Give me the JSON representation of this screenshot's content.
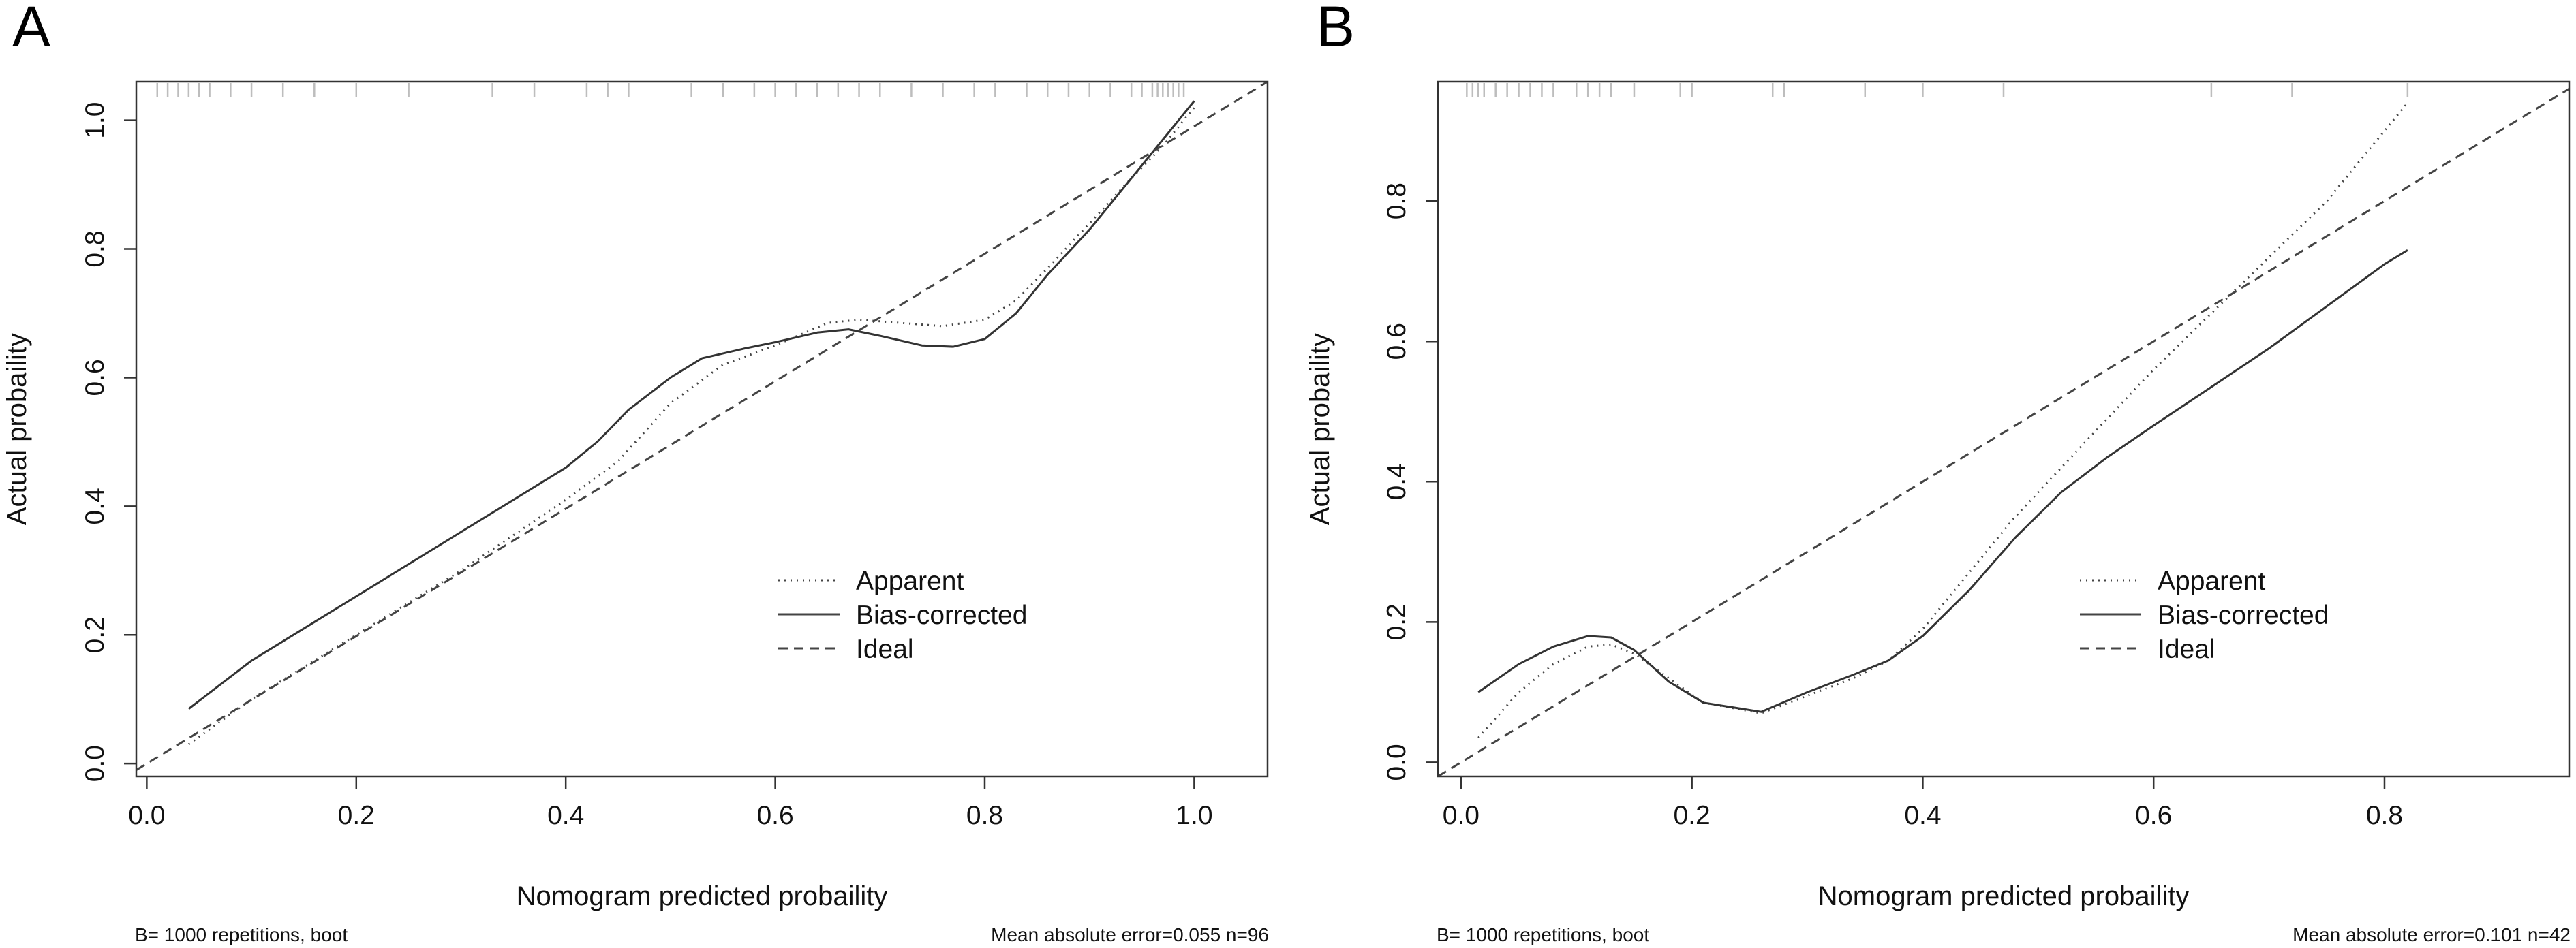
{
  "chart_data": [
    {
      "type": "line",
      "panel_label": "A",
      "xlabel": "Nomogram predicted probaility",
      "ylabel": "Actual probaility",
      "xlim": [
        -0.01,
        1.07
      ],
      "ylim": [
        -0.02,
        1.06
      ],
      "xticks": [
        0.0,
        0.2,
        0.4,
        0.6,
        0.8,
        1.0
      ],
      "xtick_labels": [
        "0.0",
        "0.2",
        "0.4",
        "0.6",
        "0.8",
        "1.0"
      ],
      "yticks": [
        0.0,
        0.2,
        0.4,
        0.6,
        0.8,
        1.0
      ],
      "ytick_labels": [
        "0.0",
        "0.2",
        "0.4",
        "0.6",
        "0.8",
        "1.0"
      ],
      "footer_left": "B= 1000 repetitions, boot",
      "footer_right": "Mean absolute error=0.055 n=96",
      "legend": [
        "Apparent",
        "Bias-corrected",
        "Ideal"
      ],
      "legend_position": "bottom-right",
      "rug": [
        0.01,
        0.02,
        0.03,
        0.04,
        0.05,
        0.06,
        0.08,
        0.1,
        0.13,
        0.16,
        0.2,
        0.25,
        0.33,
        0.37,
        0.42,
        0.44,
        0.46,
        0.52,
        0.55,
        0.58,
        0.6,
        0.62,
        0.64,
        0.66,
        0.68,
        0.7,
        0.73,
        0.76,
        0.79,
        0.81,
        0.84,
        0.86,
        0.88,
        0.9,
        0.92,
        0.94,
        0.95,
        0.96,
        0.965,
        0.97,
        0.975,
        0.98,
        0.985,
        0.99
      ],
      "series": [
        {
          "name": "Apparent",
          "style": "dotted",
          "x": [
            0.04,
            0.1,
            0.2,
            0.3,
            0.4,
            0.45,
            0.5,
            0.55,
            0.6,
            0.65,
            0.68,
            0.72,
            0.76,
            0.8,
            0.83,
            0.86,
            0.9,
            0.94,
            0.97,
            1.0
          ],
          "y": [
            0.03,
            0.1,
            0.2,
            0.3,
            0.41,
            0.47,
            0.56,
            0.62,
            0.65,
            0.685,
            0.69,
            0.685,
            0.68,
            0.69,
            0.72,
            0.77,
            0.84,
            0.91,
            0.96,
            1.02
          ]
        },
        {
          "name": "Bias-corrected",
          "style": "solid",
          "x": [
            0.04,
            0.1,
            0.2,
            0.3,
            0.4,
            0.43,
            0.46,
            0.5,
            0.53,
            0.57,
            0.6,
            0.64,
            0.67,
            0.7,
            0.74,
            0.77,
            0.8,
            0.83,
            0.86,
            0.9,
            0.94,
            0.97,
            1.0
          ],
          "y": [
            0.085,
            0.16,
            0.26,
            0.36,
            0.46,
            0.5,
            0.55,
            0.6,
            0.63,
            0.645,
            0.655,
            0.67,
            0.675,
            0.665,
            0.65,
            0.648,
            0.66,
            0.7,
            0.76,
            0.83,
            0.91,
            0.97,
            1.03
          ]
        },
        {
          "name": "Ideal",
          "style": "dashed",
          "x": [
            -0.01,
            1.07
          ],
          "y": [
            -0.01,
            1.06
          ]
        }
      ]
    },
    {
      "type": "line",
      "panel_label": "B",
      "xlabel": "Nomogram predicted probaility",
      "ylabel": "Actual probaility",
      "xlim": [
        -0.02,
        0.96
      ],
      "ylim": [
        -0.02,
        0.97
      ],
      "xticks": [
        0.0,
        0.2,
        0.4,
        0.6,
        0.8
      ],
      "xtick_labels": [
        "0.0",
        "0.2",
        "0.4",
        "0.6",
        "0.8"
      ],
      "yticks": [
        0.0,
        0.2,
        0.4,
        0.6,
        0.8
      ],
      "ytick_labels": [
        "0.0",
        "0.2",
        "0.4",
        "0.6",
        "0.8"
      ],
      "footer_left": "B= 1000 repetitions, boot",
      "footer_right": "Mean absolute error=0.101 n=42",
      "legend": [
        "Apparent",
        "Bias-corrected",
        "Ideal"
      ],
      "legend_position": "bottom-right",
      "rug": [
        0.005,
        0.01,
        0.015,
        0.02,
        0.03,
        0.04,
        0.05,
        0.06,
        0.07,
        0.08,
        0.1,
        0.11,
        0.12,
        0.13,
        0.15,
        0.19,
        0.2,
        0.27,
        0.28,
        0.35,
        0.4,
        0.47,
        0.65,
        0.72,
        0.82
      ],
      "series": [
        {
          "name": "Apparent",
          "style": "dotted",
          "x": [
            0.015,
            0.05,
            0.08,
            0.11,
            0.13,
            0.15,
            0.18,
            0.21,
            0.26,
            0.3,
            0.34,
            0.37,
            0.4,
            0.44,
            0.48,
            0.52,
            0.56,
            0.6,
            0.65,
            0.7,
            0.75,
            0.8,
            0.82
          ],
          "y": [
            0.035,
            0.1,
            0.14,
            0.165,
            0.168,
            0.155,
            0.12,
            0.085,
            0.07,
            0.095,
            0.12,
            0.145,
            0.19,
            0.27,
            0.35,
            0.42,
            0.49,
            0.56,
            0.64,
            0.72,
            0.8,
            0.9,
            0.94
          ]
        },
        {
          "name": "Bias-corrected",
          "style": "solid",
          "x": [
            0.015,
            0.05,
            0.08,
            0.11,
            0.13,
            0.15,
            0.18,
            0.21,
            0.26,
            0.3,
            0.34,
            0.37,
            0.4,
            0.44,
            0.48,
            0.52,
            0.56,
            0.6,
            0.65,
            0.7,
            0.75,
            0.8,
            0.82
          ],
          "y": [
            0.1,
            0.14,
            0.165,
            0.18,
            0.178,
            0.16,
            0.115,
            0.085,
            0.072,
            0.1,
            0.125,
            0.145,
            0.18,
            0.245,
            0.32,
            0.385,
            0.435,
            0.48,
            0.535,
            0.59,
            0.65,
            0.71,
            0.73
          ]
        },
        {
          "name": "Ideal",
          "style": "dashed",
          "x": [
            -0.02,
            0.96
          ],
          "y": [
            -0.02,
            0.96
          ]
        }
      ]
    }
  ]
}
